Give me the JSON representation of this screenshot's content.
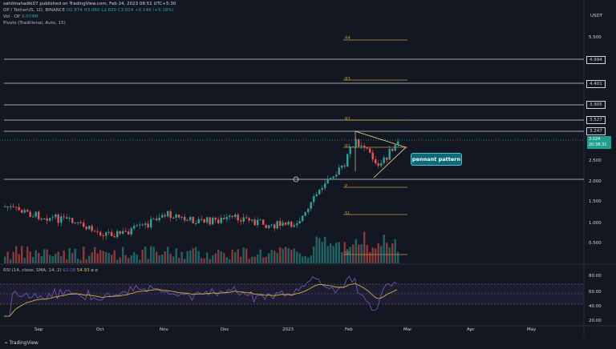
{
  "header": {
    "publisher": "sahilmahadik07 published on TradingView.com, Feb 24, 2023 08:51 UTC+5:30",
    "symbol_line": "OP / TetherUS, 1D, BINANCE",
    "ohlc": "O2.874  H3.060  L2.820  C3.024  +0.149 (+5.18%)",
    "volume_label": "Vol · OP",
    "volume_value": "9.074M",
    "pivots_label": "Pivots (Traditional, Auto, 15)",
    "currency": "USDT"
  },
  "price_axis": {
    "ticks": [
      "5.500",
      "4.994",
      "4.401",
      "3.905",
      "3.527",
      "3.247",
      "2.500",
      "2.000",
      "1.500",
      "1.000",
      "0.500"
    ],
    "last_price": "3.024",
    "countdown": "20:38:31"
  },
  "pivot_labels": [
    "R4",
    "R3",
    "R2",
    "R1",
    "P",
    "S1",
    "S2"
  ],
  "annotation": {
    "label": "pennant pattern"
  },
  "rsi": {
    "label": "RSI (14, close, SMA, 14, 2)",
    "v1": "62.08",
    "v2": "54.93",
    "ticks": [
      "80.00",
      "60.00",
      "40.00",
      "20.00"
    ]
  },
  "time_axis": [
    "Sep",
    "Oct",
    "Nov",
    "Dec",
    "2023",
    "Feb",
    "Mar",
    "Apr",
    "May"
  ],
  "footer": {
    "brand": "TradingView"
  },
  "colors": {
    "up": "#26a69a",
    "down": "#ef5350",
    "pivot": "#c89b48",
    "rsi": "#7e57c2",
    "bg": "#131722"
  }
}
